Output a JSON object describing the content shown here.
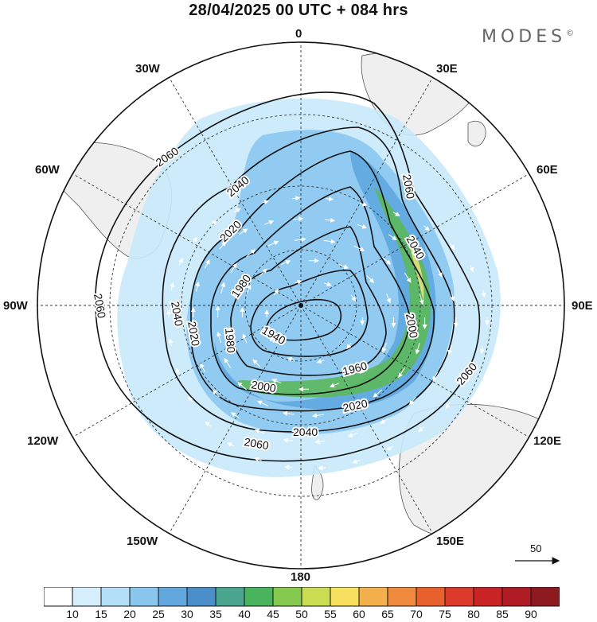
{
  "title": "28/04/2025  00 UTC  + 084 hrs",
  "logo": "MODES",
  "logo_mark": "©",
  "longitude_labels": {
    "lon_0": "0",
    "lon_30e": "30E",
    "lon_60e": "60E",
    "lon_90e": "90E",
    "lon_120e": "120E",
    "lon_150e": "150E",
    "lon_180": "180",
    "lon_150w": "150W",
    "lon_120w": "120W",
    "lon_90w": "90W",
    "lon_60w": "60W",
    "lon_30w": "30W"
  },
  "contour_labels": [
    "1940",
    "1960",
    "1980",
    "2000",
    "2020",
    "2040",
    "2060"
  ],
  "reference_vector": "50",
  "colorbar": {
    "ticks": [
      "10",
      "15",
      "20",
      "25",
      "30",
      "35",
      "40",
      "45",
      "50",
      "55",
      "60",
      "65",
      "70",
      "75",
      "80",
      "85",
      "90"
    ],
    "colors": [
      "#ffffff",
      "#d4eefc",
      "#b3e0f7",
      "#8ac6ee",
      "#62a8df",
      "#4a8fc9",
      "#4aa58f",
      "#49b45b",
      "#86c94f",
      "#c9dc52",
      "#f6e05d",
      "#f3b04c",
      "#ef8a3c",
      "#e9602f",
      "#dc3a2b",
      "#cb2427",
      "#b01c24",
      "#8c1a1f"
    ]
  },
  "colors": {
    "land": "#efefef",
    "jet_light": "#c8e9fb",
    "jet_mid": "#8cc8ef",
    "jet_strong": "#5aa6dd",
    "core_green": "#5cb85c",
    "core_yellow": "#e6e07a"
  }
}
